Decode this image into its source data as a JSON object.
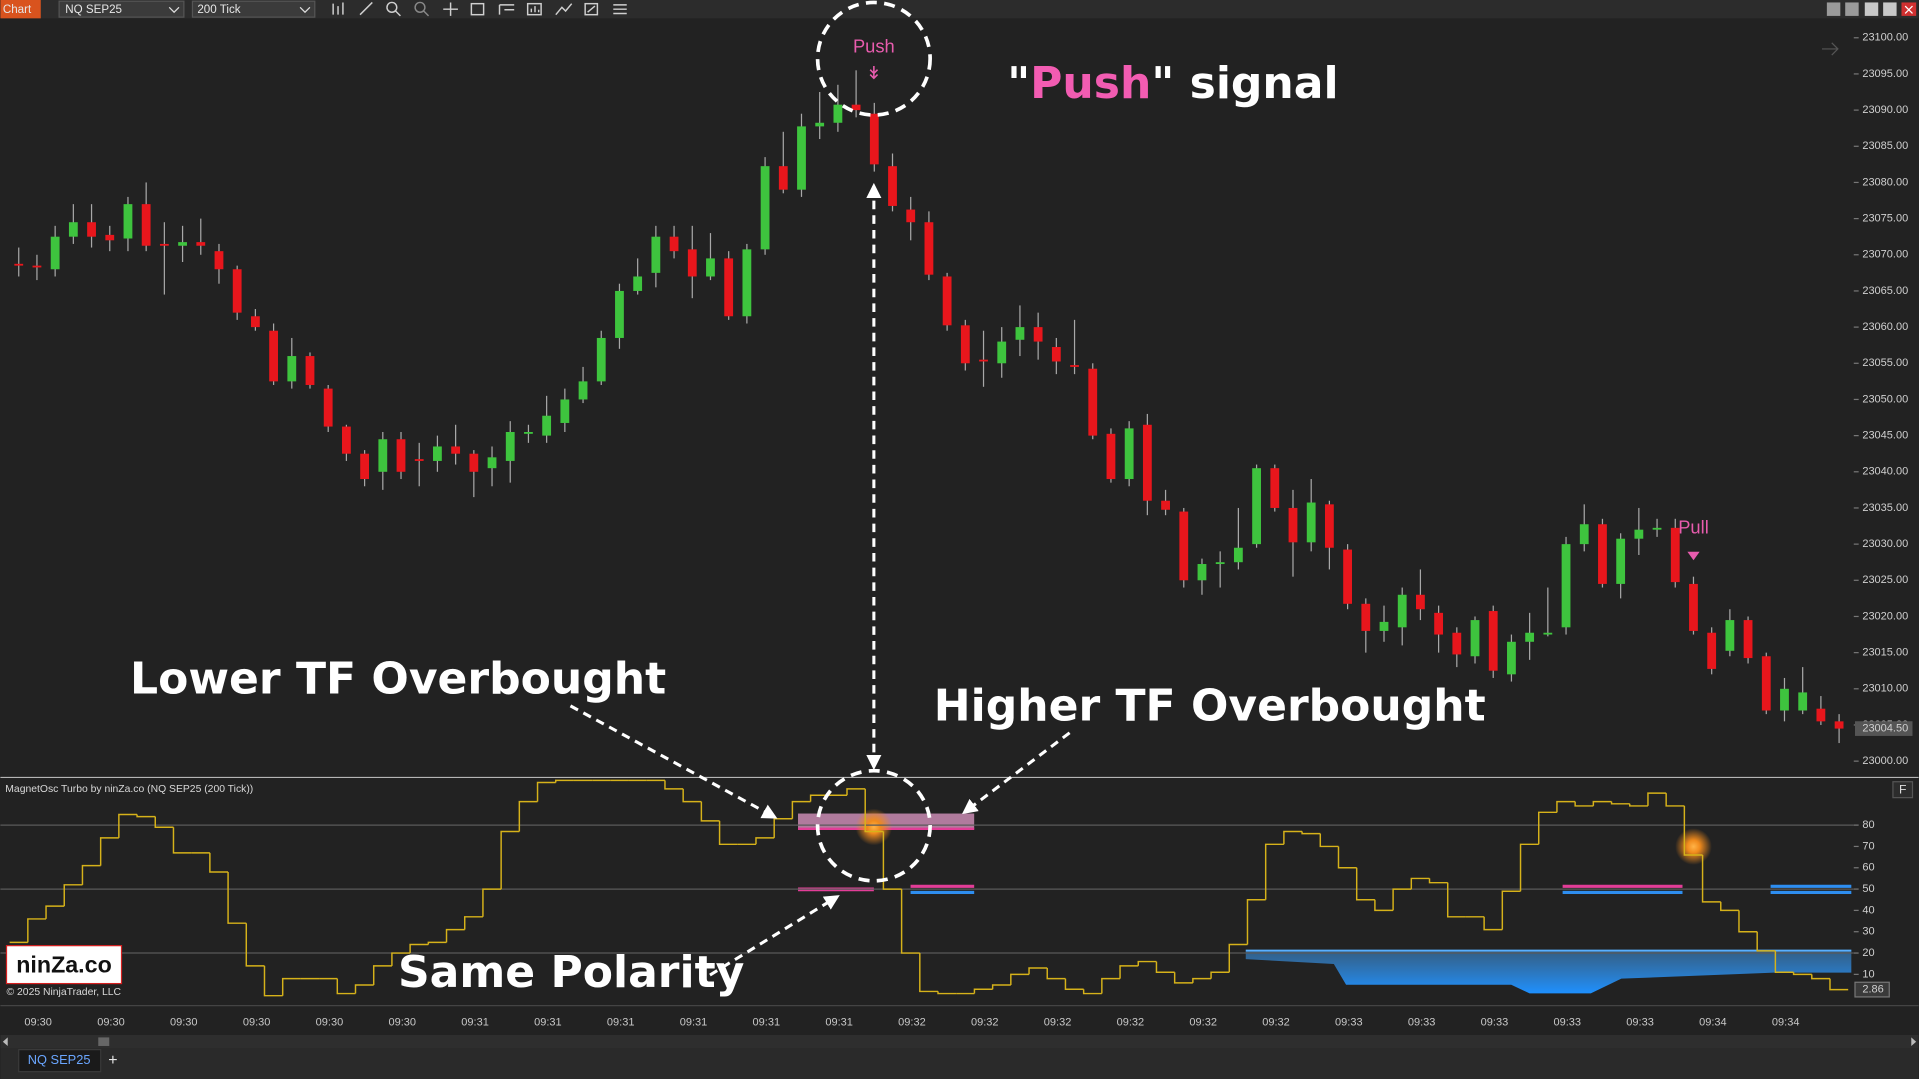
{
  "toolbar": {
    "chart_button": "Chart",
    "instrument": "NQ SEP25",
    "interval": "200 Tick"
  },
  "tabs": {
    "active": "NQ SEP25",
    "add": "+"
  },
  "panel_button": "F",
  "logo": "ninZa.co",
  "copyright": "© 2025 NinjaTrader, LLC",
  "annotations": {
    "push_signal": [
      "\"",
      "Push",
      "\" signal"
    ],
    "lower_tf": "Lower TF Overbought",
    "higher_tf": "Higher TF Overbought",
    "same_polarity": "Same Polarity",
    "push": "Push",
    "pull": "Pull"
  },
  "chart_data": [
    {
      "type": "candlestick",
      "up_color": "#3ec43e",
      "down_color": "#e8161c",
      "wick_color": "#a8a8a8",
      "ylim": [
        22998,
        23101.5
      ],
      "yticks": [
        {
          "value": 23000,
          "label": "23000.00"
        },
        {
          "value": 23005,
          "label": "23005.00"
        },
        {
          "value": 23010,
          "label": "23010.00"
        },
        {
          "value": 23015,
          "label": "23015.00"
        },
        {
          "value": 23020,
          "label": "23020.00"
        },
        {
          "value": 23025,
          "label": "23025.00"
        },
        {
          "value": 23030,
          "label": "23030.00"
        },
        {
          "value": 23035,
          "label": "23035.00"
        },
        {
          "value": 23040,
          "label": "23040.00"
        },
        {
          "value": 23045,
          "label": "23045.00"
        },
        {
          "value": 23050,
          "label": "23050.00"
        },
        {
          "value": 23055,
          "label": "23055.00"
        },
        {
          "value": 23060,
          "label": "23060.00"
        },
        {
          "value": 23065,
          "label": "23065.00"
        },
        {
          "value": 23070,
          "label": "23070.00"
        },
        {
          "value": 23075,
          "label": "23075.00"
        },
        {
          "value": 23080,
          "label": "23080.00"
        },
        {
          "value": 23085,
          "label": "23085.00"
        },
        {
          "value": 23090,
          "label": "23090.00"
        },
        {
          "value": 23095,
          "label": "23095.00"
        },
        {
          "value": 23100,
          "label": "23100.00"
        }
      ],
      "last_price": {
        "value": 23004.5,
        "label": "23004.50"
      },
      "categories": [
        null,
        "09:30",
        null,
        null,
        null,
        "09:30",
        null,
        null,
        null,
        "09:30",
        null,
        null,
        null,
        "09:30",
        null,
        null,
        null,
        "09:30",
        null,
        null,
        null,
        "09:30",
        null,
        null,
        null,
        "09:31",
        null,
        null,
        null,
        "09:31",
        null,
        null,
        null,
        "09:31",
        null,
        null,
        null,
        "09:31",
        null,
        null,
        null,
        "09:31",
        null,
        null,
        null,
        "09:31",
        null,
        null,
        null,
        "09:32",
        null,
        null,
        null,
        "09:32",
        null,
        null,
        null,
        "09:32",
        null,
        null,
        null,
        "09:32",
        null,
        null,
        null,
        "09:32",
        null,
        null,
        null,
        "09:32",
        null,
        null,
        null,
        "09:33",
        null,
        null,
        null,
        "09:33",
        null,
        null,
        null,
        "09:33",
        null,
        null,
        null,
        "09:33",
        null,
        null,
        null,
        "09:33",
        null,
        null,
        null,
        "09:34",
        null,
        null,
        null,
        "09:34",
        null,
        null,
        null
      ],
      "open": [
        23068.75,
        23068.5,
        23068,
        23072.5,
        23074.5,
        23072.75,
        23072.25,
        23077,
        23071.5,
        23071.25,
        23071.75,
        23070.5,
        23068,
        23061.5,
        23059.5,
        23052.5,
        23056,
        23051.5,
        23046.25,
        23042.5,
        23040,
        23044.5,
        23041.75,
        23041.5,
        23043.5,
        23042.5,
        23040.5,
        23041.5,
        23045.25,
        23045,
        23046.75,
        23050,
        23052.5,
        23058.5,
        23065,
        23067.5,
        23072.5,
        23070.75,
        23067,
        23069.5,
        23061.5,
        23070.75,
        23082.25,
        23079,
        23087.75,
        23088.25,
        23090.75,
        23089.5,
        23082.25,
        23076.25,
        23074.5,
        23067,
        23060.25,
        23055.5,
        23055,
        23058.25,
        23060,
        23057.25,
        23054.75,
        23054.25,
        23045.25,
        23039,
        23046.5,
        23036,
        23034.5,
        23025,
        23027.25,
        23027.5,
        23030,
        23040.5,
        23035,
        23030.25,
        23035.5,
        23029.25,
        23021.75,
        23018,
        23018.5,
        23023,
        23020.5,
        23017.75,
        23014.5,
        23020.75,
        23012,
        23016.5,
        23017.5,
        23018.5,
        23030,
        23032.75,
        23024.5,
        23030.75,
        23032,
        23032.25,
        23024.5,
        23017.75,
        23015.25,
        23019.5,
        23014.5,
        23007,
        23007,
        23007.25,
        23005.5
      ],
      "high": [
        23071,
        23070,
        23074,
        23077,
        23077,
        23074,
        23078,
        23080,
        23074.5,
        23074,
        23075,
        23071.5,
        23068.5,
        23062.5,
        23060.5,
        23058.5,
        23056.5,
        23052,
        23046.5,
        23043,
        23045.5,
        23045.5,
        23044,
        23045,
        23046.5,
        23043,
        23043.5,
        23047,
        23046.5,
        23050.5,
        23051.5,
        23054.5,
        23059.5,
        23066,
        23069.5,
        23074,
        23074,
        23074,
        23073,
        23070.5,
        23071.5,
        23083.5,
        23087,
        23089.5,
        23092.5,
        23093.5,
        23095.5,
        23091,
        23084,
        23078,
        23076,
        23067.5,
        23061,
        23059.5,
        23060,
        23063,
        23062,
        23058.5,
        23061,
        23055,
        23046,
        23047,
        23048,
        23037.5,
        23035,
        23028,
        23029,
        23035,
        23041,
        23041,
        23037.5,
        23039,
        23036,
        23030,
        23022.5,
        23021.5,
        23024,
        23026.5,
        23021.5,
        23018.5,
        23020,
        23021.5,
        23017.5,
        23020.5,
        23024,
        23031,
        23035.5,
        23033.5,
        23031.5,
        23035,
        23033.5,
        23033.5,
        23025.5,
        23018.5,
        23021,
        23020,
        23015,
        23011.5,
        23013,
        23009,
        23006.5
      ],
      "low": [
        23067,
        23066.5,
        23067,
        23071.5,
        23071,
        23070.5,
        23070.5,
        23070.5,
        23064.5,
        23069,
        23070,
        23066,
        23061,
        23059.5,
        23052,
        23051.5,
        23051.5,
        23045.5,
        23041.5,
        23038,
        23037.5,
        23039,
        23038,
        23040,
        23041,
        23036.5,
        23038,
        23038.5,
        23044,
        23044,
        23045.5,
        23049.5,
        23052,
        23057,
        23064.5,
        23065.5,
        23069.5,
        23064,
        23066.5,
        23061,
        23060.5,
        23070,
        23078.5,
        23078,
        23086,
        23087,
        23089,
        23081.5,
        23076,
        23072,
        23066.5,
        23059.5,
        23054,
        23051.75,
        23053,
        23056,
        23055.5,
        23053.5,
        23053.5,
        23044.5,
        23038.5,
        23038,
        23034,
        23034,
        23024,
        23023,
        23024,
        23026.5,
        23029.5,
        23034.5,
        23025.5,
        23029,
        23026.5,
        23021,
        23015,
        23016.5,
        23016,
        23019.5,
        23015,
        23013,
        23013.5,
        23011.5,
        23011,
        23014,
        23017.25,
        23017.5,
        23029,
        23024,
        23022.5,
        23028.5,
        23031,
        23024,
        23017.5,
        23012,
        23014.5,
        23013.5,
        23006.5,
        23005.5,
        23006.5,
        23005,
        23002.5
      ],
      "close": [
        23068.5,
        23068.25,
        23072.5,
        23074.5,
        23072.5,
        23072,
        23077,
        23071.25,
        23071.25,
        23071.75,
        23071.25,
        23068,
        23062,
        23060,
        23052.5,
        23056,
        23052,
        23046.25,
        23042.5,
        23039,
        23044.5,
        23040,
        23041.5,
        23043.5,
        23042.5,
        23040,
        23042,
        23045.5,
        23045.5,
        23047.75,
        23050,
        23052.5,
        23058.5,
        23065,
        23067,
        23072.5,
        23070.5,
        23067,
        23069.5,
        23061.5,
        23070.75,
        23082.25,
        23079,
        23087.75,
        23088.25,
        23090.75,
        23090,
        23082.5,
        23076.75,
        23074.5,
        23067.25,
        23060.25,
        23055,
        23055.25,
        23058,
        23060,
        23058,
        23055.25,
        23054.5,
        23045,
        23039,
        23046,
        23036,
        23034.75,
        23025,
        23027.25,
        23027.5,
        23029.5,
        23040.5,
        23035,
        23030.25,
        23035.75,
        23029.5,
        23021.75,
        23018,
        23019.25,
        23023,
        23021,
        23017.5,
        23014.75,
        23019.5,
        23012.5,
        23016.5,
        23017.75,
        23017.75,
        23030,
        23032.75,
        23024.5,
        23030.75,
        23032,
        23032.25,
        23024.75,
        23018,
        23012.75,
        23019.5,
        23014.25,
        23007,
        23010,
        23009.5,
        23005.5,
        23004.5
      ]
    },
    {
      "type": "line",
      "step": true,
      "title": "MagnetOsc Turbo by ninZa.co (NQ SEP25 (200 Tick))",
      "ylim": [
        -3.5,
        101.5
      ],
      "yticks": [
        10,
        20,
        30,
        40,
        50,
        60,
        70,
        80
      ],
      "hlines": [
        20,
        50,
        80
      ],
      "series": [
        {
          "color": "#d6b21a",
          "values": [
            25,
            36,
            42,
            52,
            61,
            74,
            85,
            84,
            79,
            67,
            67,
            58,
            34,
            14,
            0,
            8,
            8,
            8,
            1,
            5,
            14,
            20,
            24,
            25,
            31,
            37,
            50,
            77,
            91,
            100,
            101,
            101,
            101,
            101,
            101,
            101,
            97,
            91,
            82,
            71,
            71,
            74,
            83,
            91,
            94,
            94,
            97,
            77,
            50,
            20,
            2,
            1,
            1,
            3,
            5,
            10,
            13,
            8,
            3,
            1,
            8,
            14,
            16,
            11,
            6,
            8,
            11,
            24,
            45,
            71,
            77,
            76,
            70,
            60,
            45,
            40,
            50,
            55,
            53,
            37,
            37,
            31,
            49,
            71,
            86,
            91,
            89,
            91,
            90,
            89,
            95,
            89,
            66,
            44,
            40,
            30,
            21,
            11,
            10,
            8,
            2.86
          ]
        }
      ]
    }
  ]
}
